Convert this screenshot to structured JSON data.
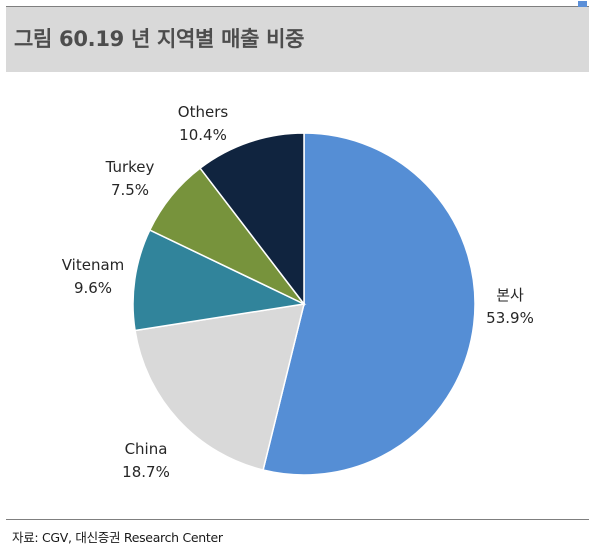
{
  "header": {
    "title": "그림 60.19 년 지역별 매출 비중"
  },
  "source": "자료: CGV, 대신증권 Research Center",
  "colors": {
    "title_bar": "#d9d9d9",
    "accent_square": "#5b8fd8"
  },
  "chart_data": {
    "type": "pie",
    "title": "",
    "categories": [
      "본사",
      "China",
      "Vitenam",
      "Turkey",
      "Others"
    ],
    "values": [
      53.9,
      18.7,
      9.6,
      7.5,
      10.4
    ],
    "value_labels": [
      "53.9%",
      "18.7%",
      "9.6%",
      "7.5%",
      "10.4%"
    ],
    "colors": [
      "#558ed5",
      "#d9d9d9",
      "#31849b",
      "#77933c",
      "#10243f"
    ],
    "start_angle_deg": 0,
    "direction": "clockwise",
    "legend": "none",
    "labels": "outside"
  }
}
